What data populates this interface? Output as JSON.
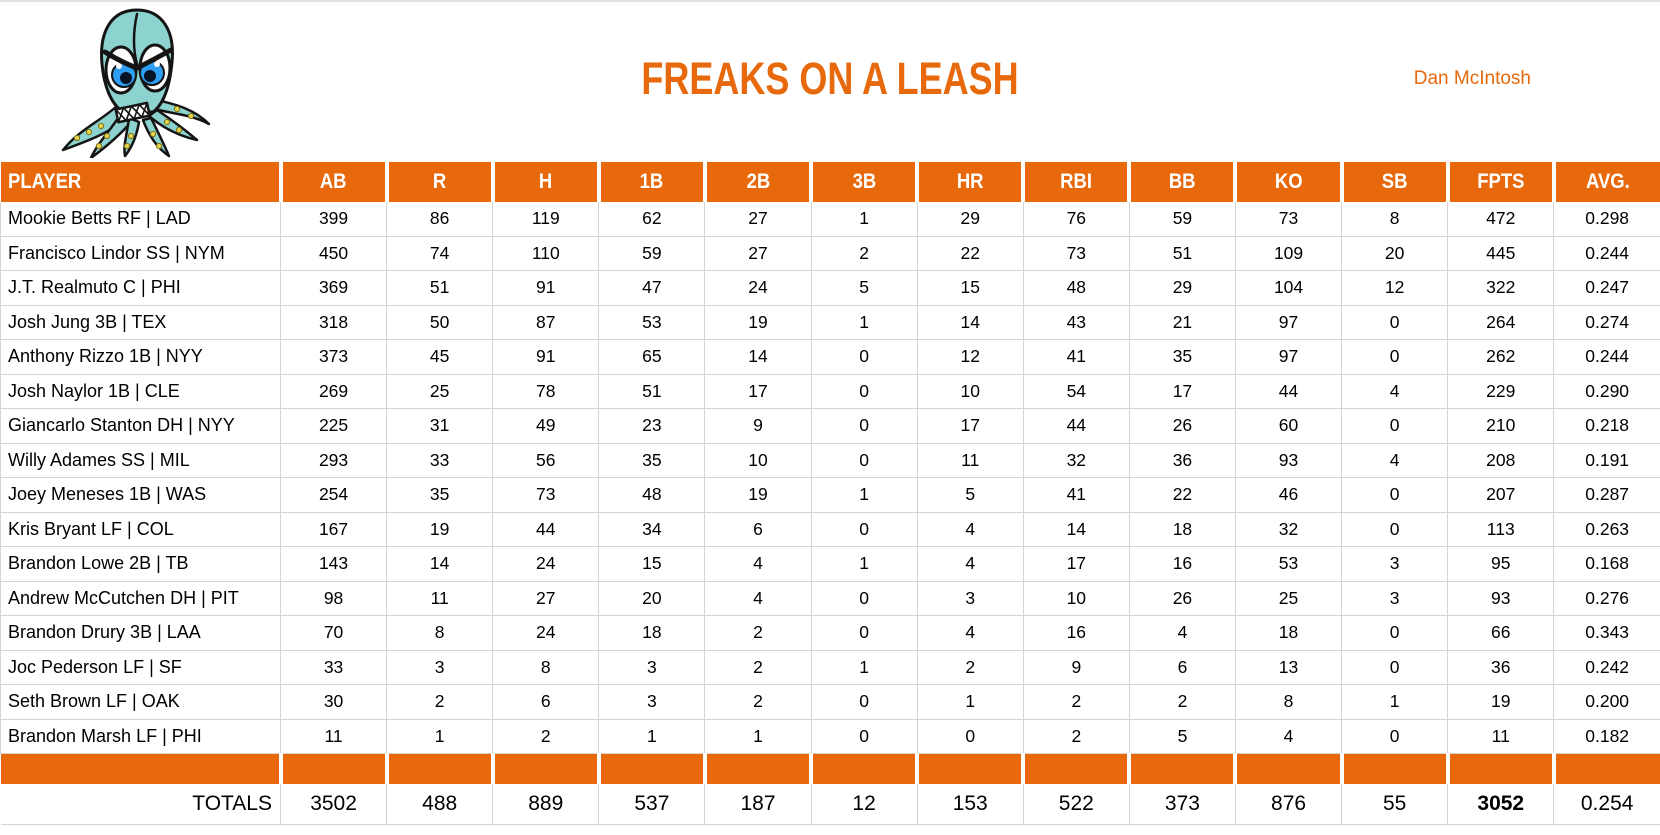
{
  "header": {
    "title": "FREAKS ON A LEASH",
    "owner": "Dan McIntosh",
    "logo": "angry-octopus-mascot"
  },
  "colors": {
    "accent": "#E8690B",
    "grid": "#D4D4D4",
    "header_text": "#FFFFFF",
    "text": "#000000",
    "logo_body": "#8CD2CE",
    "logo_eye": "#2E9FF2",
    "logo_sucker": "#E6D54E"
  },
  "table": {
    "columns": [
      "PLAYER",
      "AB",
      "R",
      "H",
      "1B",
      "2B",
      "3B",
      "HR",
      "RBI",
      "BB",
      "KO",
      "SB",
      "FPTS",
      "AVG."
    ],
    "rows": [
      {
        "player": "Mookie Betts RF | LAD",
        "stats": [
          399,
          86,
          119,
          62,
          27,
          1,
          29,
          76,
          59,
          73,
          8,
          472,
          "0.298"
        ]
      },
      {
        "player": "Francisco Lindor SS | NYM",
        "stats": [
          450,
          74,
          110,
          59,
          27,
          2,
          22,
          73,
          51,
          109,
          20,
          445,
          "0.244"
        ]
      },
      {
        "player": "J.T. Realmuto C | PHI",
        "stats": [
          369,
          51,
          91,
          47,
          24,
          5,
          15,
          48,
          29,
          104,
          12,
          322,
          "0.247"
        ]
      },
      {
        "player": "Josh Jung 3B | TEX",
        "stats": [
          318,
          50,
          87,
          53,
          19,
          1,
          14,
          43,
          21,
          97,
          0,
          264,
          "0.274"
        ]
      },
      {
        "player": "Anthony Rizzo 1B | NYY",
        "stats": [
          373,
          45,
          91,
          65,
          14,
          0,
          12,
          41,
          35,
          97,
          0,
          262,
          "0.244"
        ]
      },
      {
        "player": "Josh Naylor 1B | CLE",
        "stats": [
          269,
          25,
          78,
          51,
          17,
          0,
          10,
          54,
          17,
          44,
          4,
          229,
          "0.290"
        ]
      },
      {
        "player": "Giancarlo Stanton DH | NYY",
        "stats": [
          225,
          31,
          49,
          23,
          9,
          0,
          17,
          44,
          26,
          60,
          0,
          210,
          "0.218"
        ]
      },
      {
        "player": "Willy Adames SS | MIL",
        "stats": [
          293,
          33,
          56,
          35,
          10,
          0,
          11,
          32,
          36,
          93,
          4,
          208,
          "0.191"
        ]
      },
      {
        "player": "Joey Meneses 1B | WAS",
        "stats": [
          254,
          35,
          73,
          48,
          19,
          1,
          5,
          41,
          22,
          46,
          0,
          207,
          "0.287"
        ]
      },
      {
        "player": "Kris Bryant LF | COL",
        "stats": [
          167,
          19,
          44,
          34,
          6,
          0,
          4,
          14,
          18,
          32,
          0,
          113,
          "0.263"
        ]
      },
      {
        "player": "Brandon Lowe 2B | TB",
        "stats": [
          143,
          14,
          24,
          15,
          4,
          1,
          4,
          17,
          16,
          53,
          3,
          95,
          "0.168"
        ]
      },
      {
        "player": "Andrew McCutchen DH | PIT",
        "stats": [
          98,
          11,
          27,
          20,
          4,
          0,
          3,
          10,
          26,
          25,
          3,
          93,
          "0.276"
        ]
      },
      {
        "player": "Brandon Drury 3B | LAA",
        "stats": [
          70,
          8,
          24,
          18,
          2,
          0,
          4,
          16,
          4,
          18,
          0,
          66,
          "0.343"
        ]
      },
      {
        "player": "Joc Pederson LF | SF",
        "stats": [
          33,
          3,
          8,
          3,
          2,
          1,
          2,
          9,
          6,
          13,
          0,
          36,
          "0.242"
        ]
      },
      {
        "player": "Seth Brown LF | OAK",
        "stats": [
          30,
          2,
          6,
          3,
          2,
          0,
          1,
          2,
          2,
          8,
          1,
          19,
          "0.200"
        ]
      },
      {
        "player": "Brandon Marsh LF | PHI",
        "stats": [
          11,
          1,
          2,
          1,
          1,
          0,
          0,
          2,
          5,
          4,
          0,
          11,
          "0.182"
        ]
      }
    ],
    "totals": {
      "label": "TOTALS",
      "values": [
        3502,
        488,
        889,
        537,
        187,
        12,
        153,
        522,
        373,
        876,
        55,
        3052,
        "0.254"
      ]
    }
  }
}
